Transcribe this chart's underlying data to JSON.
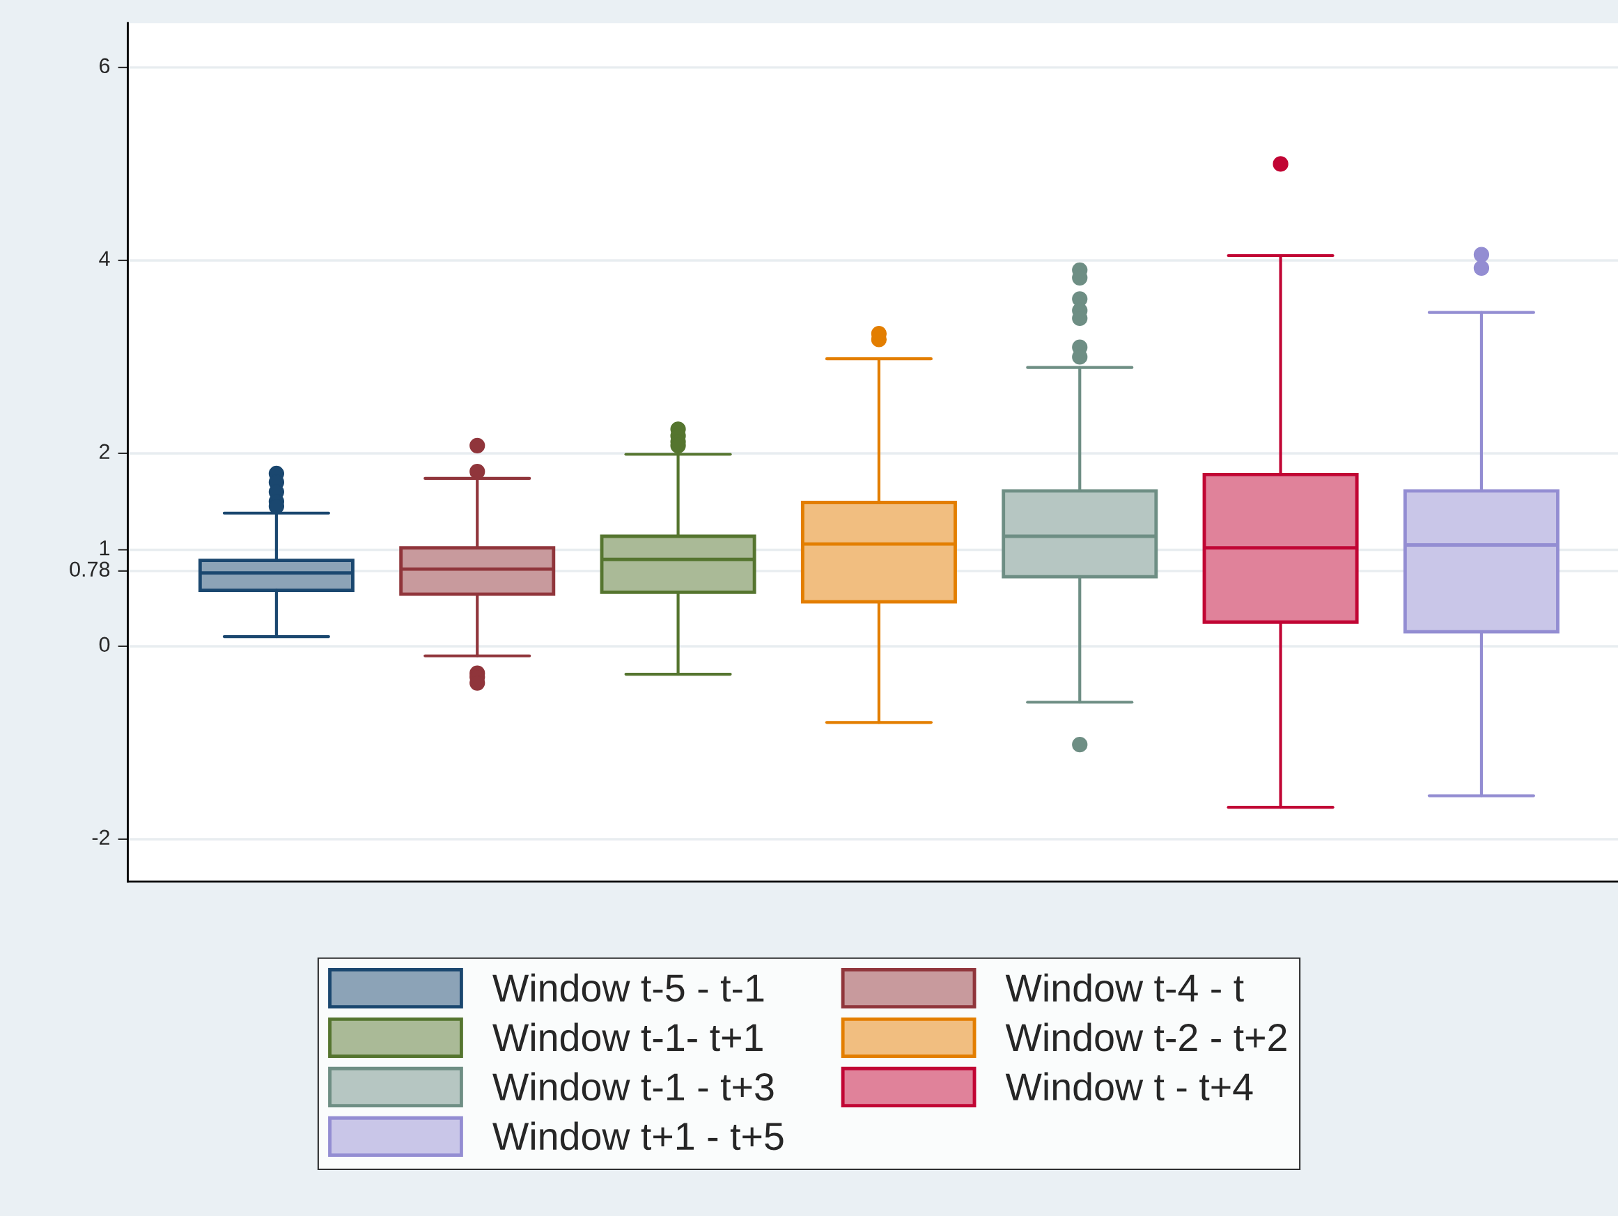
{
  "chart_data": {
    "type": "box",
    "categories": [
      null
    ],
    "series": [
      {
        "name": "Window t-5 - t-1",
        "color": "#1a476f",
        "boxes": [
          {
            "low": 0.1,
            "q1": 0.58,
            "median": 0.76,
            "q3": 0.89,
            "high": 1.38,
            "outliers": [
              1.79,
              1.7,
              1.6,
              1.5,
              1.45
            ]
          }
        ]
      },
      {
        "name": "Window t-4 - t",
        "color": "#90353b",
        "boxes": [
          {
            "low": -0.1,
            "q1": 0.54,
            "median": 0.8,
            "q3": 1.02,
            "high": 1.74,
            "outliers": [
              2.08,
              1.81,
              -0.28,
              -0.32,
              -0.38
            ]
          }
        ]
      },
      {
        "name": "Window t-1- t+1",
        "color": "#55752f",
        "boxes": [
          {
            "low": -0.29,
            "q1": 0.56,
            "median": 0.9,
            "q3": 1.14,
            "high": 1.99,
            "outliers": [
              2.25,
              2.18,
              2.12,
              2.08
            ]
          }
        ]
      },
      {
        "name": "Window t-2 - t+2",
        "color": "#e37e00",
        "boxes": [
          {
            "low": -0.79,
            "q1": 0.46,
            "median": 1.06,
            "q3": 1.49,
            "high": 2.98,
            "outliers": [
              3.18,
              3.24
            ]
          }
        ]
      },
      {
        "name": "Window t-1 - t+3",
        "color": "#6e8e84",
        "boxes": [
          {
            "low": -0.58,
            "q1": 0.72,
            "median": 1.14,
            "q3": 1.61,
            "high": 2.89,
            "outliers": [
              3.9,
              3.82,
              3.6,
              3.48,
              3.4,
              3.1,
              3.0,
              -1.02
            ]
          }
        ]
      },
      {
        "name": "Window t - t+4",
        "color": "#c10534",
        "boxes": [
          {
            "low": -1.67,
            "q1": 0.25,
            "median": 1.02,
            "q3": 1.78,
            "high": 4.05,
            "outliers": [
              5.0
            ]
          }
        ]
      },
      {
        "name": "Window t+1 - t+5",
        "color": "#938dd2",
        "boxes": [
          {
            "low": -1.55,
            "q1": 0.15,
            "median": 1.05,
            "q3": 1.61,
            "high": 3.46,
            "outliers": [
              4.06,
              3.92
            ]
          }
        ]
      }
    ],
    "ylim": [
      -2.44,
      6.46
    ],
    "yticks": [
      -2,
      0,
      0.78,
      1,
      2,
      4,
      6
    ],
    "grid": "y",
    "legend": "bottom",
    "tick_labels": "y"
  }
}
